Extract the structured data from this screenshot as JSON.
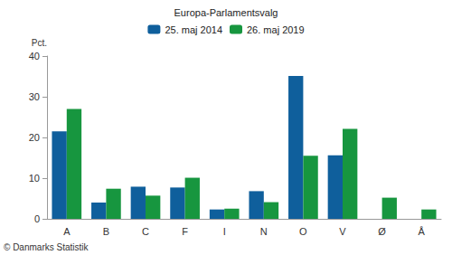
{
  "chart_data": {
    "type": "bar",
    "title": "Europa-Parlamentsvalg",
    "ylabel": "Pct.",
    "annotations": [
      "© Danmarks Statistik"
    ],
    "categories": [
      "A",
      "B",
      "C",
      "F",
      "I",
      "N",
      "O",
      "V",
      "Ø",
      "Å"
    ],
    "series": [
      {
        "name": "25. maj 2014",
        "color": "#0f5f9c",
        "values": [
          21.5,
          4.0,
          7.9,
          7.7,
          2.3,
          6.8,
          35.1,
          15.6,
          null,
          null
        ]
      },
      {
        "name": "26. maj 2019",
        "color": "#17963f",
        "values": [
          27.0,
          7.4,
          5.7,
          10.1,
          2.5,
          4.1,
          15.5,
          22.1,
          5.2,
          2.3
        ]
      }
    ],
    "ylim": [
      0,
      40
    ],
    "yticks": [
      0,
      10,
      20,
      30,
      40
    ],
    "grid": false,
    "legend": "top"
  }
}
